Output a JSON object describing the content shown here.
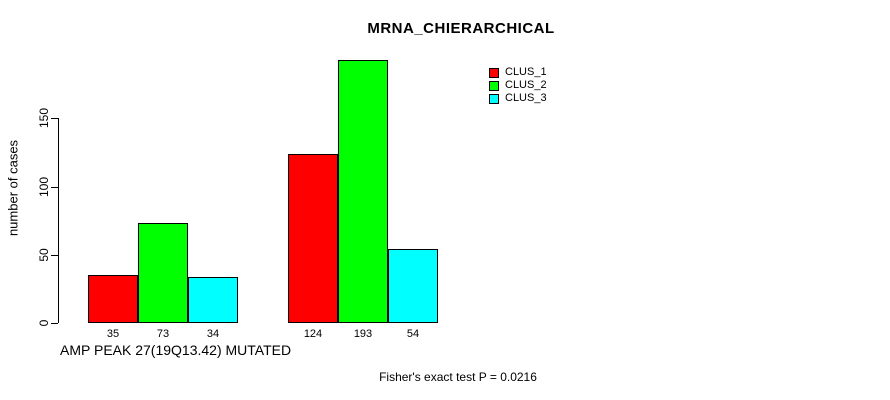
{
  "title": "MRNA_CHIERARCHICAL",
  "chart_data": {
    "type": "bar",
    "title": "MRNA_CHIERARCHICAL",
    "ylabel": "number of cases",
    "xlabel": "AMP PEAK 27(19Q13.42) MUTATED",
    "categories": [
      "AMP PEAK 27(19Q13.42) MUTATED",
      ""
    ],
    "series": [
      {
        "name": "CLUS_1",
        "color": "#ff0000",
        "values": [
          35,
          124
        ]
      },
      {
        "name": "CLUS_2",
        "color": "#00ff00",
        "values": [
          73,
          193
        ]
      },
      {
        "name": "CLUS_3",
        "color": "#00ffff",
        "values": [
          34,
          54
        ]
      }
    ],
    "yticks": [
      0,
      50,
      100,
      150
    ],
    "ylim": [
      0,
      200
    ],
    "bar_value_labels": [
      [
        35,
        73,
        34
      ],
      [
        124,
        193,
        54
      ]
    ],
    "grid": false,
    "legend_position": "top-right",
    "annotation": "Fisher's exact test P = 0.0216"
  }
}
